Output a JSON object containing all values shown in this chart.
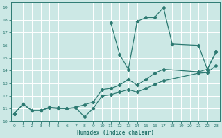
{
  "xlabel": "Humidex (Indice chaleur)",
  "bg_color": "#cce8e5",
  "grid_color": "#ffffff",
  "line_color": "#2d7a72",
  "xlim": [
    0,
    23
  ],
  "ylim": [
    10,
    19.4
  ],
  "xticks": [
    0,
    1,
    2,
    3,
    4,
    5,
    6,
    7,
    8,
    9,
    10,
    11,
    12,
    13,
    14,
    15,
    16,
    17,
    18,
    19,
    20,
    21,
    22,
    23
  ],
  "yticks": [
    10,
    11,
    12,
    13,
    14,
    15,
    16,
    17,
    18,
    19
  ],
  "peak_x": [
    11,
    12,
    13,
    14,
    15,
    16,
    17,
    18,
    21,
    22,
    23
  ],
  "peak_y": [
    17.8,
    15.3,
    14.1,
    17.9,
    18.2,
    18.2,
    19.0,
    16.1,
    16.0,
    14.1,
    15.5
  ],
  "low_x": [
    0,
    1,
    2,
    3,
    4,
    5,
    6,
    7,
    8,
    9,
    10,
    11,
    12,
    13,
    14,
    15,
    16,
    17,
    21,
    22,
    23
  ],
  "low_y": [
    10.6,
    11.35,
    10.85,
    10.85,
    11.05,
    11.0,
    11.0,
    11.05,
    10.35,
    11.0,
    12.0,
    12.1,
    12.3,
    12.5,
    12.3,
    12.6,
    12.9,
    13.2,
    13.8,
    13.85,
    14.4
  ],
  "mid_x": [
    0,
    1,
    2,
    3,
    4,
    5,
    6,
    7,
    8,
    9,
    10,
    11,
    12,
    13,
    14,
    15,
    16,
    17,
    21,
    22,
    23
  ],
  "mid_y": [
    10.6,
    11.35,
    10.85,
    10.85,
    11.1,
    11.05,
    11.0,
    11.1,
    11.3,
    11.5,
    12.5,
    12.6,
    12.85,
    13.3,
    12.85,
    13.3,
    13.8,
    14.1,
    13.9,
    14.1,
    15.5
  ]
}
